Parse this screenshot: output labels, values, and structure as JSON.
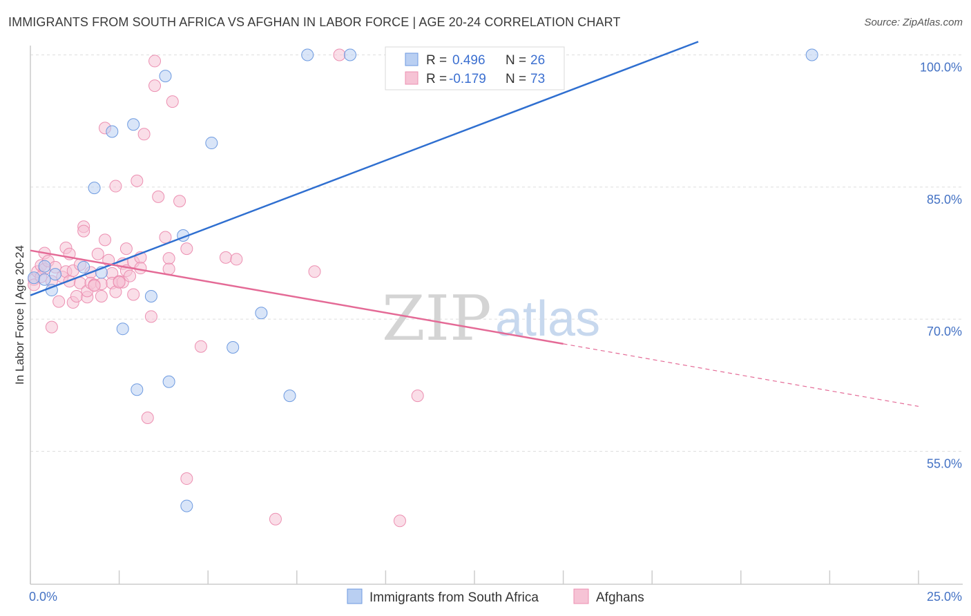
{
  "header": {
    "title": "IMMIGRANTS FROM SOUTH AFRICA VS AFGHAN IN LABOR FORCE | AGE 20-24 CORRELATION CHART",
    "source": "Source: ZipAtlas.com"
  },
  "watermark": {
    "zip": "ZIP",
    "atlas": "atlas"
  },
  "colors": {
    "blue": "#6d9ae0",
    "blue_fill": "#b9cff2",
    "blue_line": "#2f6fd0",
    "pink": "#ec8fb1",
    "pink_fill": "#f6c3d5",
    "pink_line": "#e46a96",
    "grid": "#dddddd",
    "axis_text": "#4472c4"
  },
  "legend": {
    "rows": [
      {
        "r_label": "R =",
        "r_value": "0.496",
        "n_label": "N =",
        "n_value": "26"
      },
      {
        "r_label": "R =",
        "r_value": "-0.179",
        "n_label": "N =",
        "n_value": "73"
      }
    ]
  },
  "bottom_legend": {
    "items": [
      "Immigrants from South Africa",
      "Afghans"
    ]
  },
  "chart_data": {
    "type": "scatter",
    "title": "IMMIGRANTS FROM SOUTH AFRICA VS AFGHAN IN LABOR FORCE | AGE 20-24 CORRELATION CHART",
    "xlabel": "",
    "ylabel": "In Labor Force | Age 20-24",
    "xlim": [
      0,
      25
    ],
    "ylim": [
      40,
      101.5
    ],
    "x_ticks": [
      "0.0%",
      "25.0%"
    ],
    "y_ticks": [
      {
        "value": 100,
        "label": "100.0%"
      },
      {
        "value": 85,
        "label": "85.0%"
      },
      {
        "value": 70,
        "label": "70.0%"
      },
      {
        "value": 55,
        "label": "55.0%"
      }
    ],
    "grid": true,
    "legend_position": "top-center",
    "series": [
      {
        "name": "Immigrants from South Africa",
        "R": 0.496,
        "N": 26,
        "trend": {
          "x": [
            0,
            18.8
          ],
          "y": [
            72.7,
            101.5
          ],
          "extended": false
        },
        "points": [
          [
            0.1,
            74.7
          ],
          [
            0.4,
            74.5
          ],
          [
            0.4,
            76.0
          ],
          [
            0.6,
            73.3
          ],
          [
            0.7,
            75.1
          ],
          [
            1.5,
            75.9
          ],
          [
            2.0,
            75.3
          ],
          [
            1.8,
            84.9
          ],
          [
            2.3,
            91.3
          ],
          [
            2.9,
            92.1
          ],
          [
            2.6,
            68.9
          ],
          [
            3.0,
            62.0
          ],
          [
            3.4,
            72.6
          ],
          [
            3.8,
            97.6
          ],
          [
            3.9,
            62.9
          ],
          [
            4.3,
            79.5
          ],
          [
            4.4,
            48.8
          ],
          [
            5.1,
            90.0
          ],
          [
            5.7,
            66.8
          ],
          [
            6.5,
            70.7
          ],
          [
            7.3,
            61.3
          ],
          [
            7.8,
            100.0
          ],
          [
            9.0,
            100.0
          ],
          [
            12.5,
            100.0
          ],
          [
            14.6,
            100.0
          ],
          [
            22.0,
            100.0
          ]
        ]
      },
      {
        "name": "Afghans",
        "R": -0.179,
        "N": 73,
        "trend": {
          "x": [
            0,
            15.0
          ],
          "y": [
            77.8,
            67.2
          ],
          "dashed_to": [
            25.0,
            60.1
          ]
        },
        "points": [
          [
            0.1,
            74.5
          ],
          [
            0.1,
            73.9
          ],
          [
            0.2,
            75.4
          ],
          [
            0.3,
            76.1
          ],
          [
            0.4,
            77.5
          ],
          [
            0.4,
            75.7
          ],
          [
            0.5,
            76.6
          ],
          [
            0.6,
            74.3
          ],
          [
            0.6,
            69.1
          ],
          [
            0.7,
            75.9
          ],
          [
            0.8,
            72.0
          ],
          [
            0.9,
            74.8
          ],
          [
            1.0,
            75.4
          ],
          [
            1.0,
            78.1
          ],
          [
            1.1,
            74.3
          ],
          [
            1.1,
            77.4
          ],
          [
            1.2,
            71.9
          ],
          [
            1.2,
            75.5
          ],
          [
            1.3,
            72.6
          ],
          [
            1.4,
            74.1
          ],
          [
            1.4,
            76.2
          ],
          [
            1.5,
            80.5
          ],
          [
            1.5,
            80.0
          ],
          [
            1.6,
            72.5
          ],
          [
            1.6,
            73.2
          ],
          [
            1.7,
            75.3
          ],
          [
            1.7,
            74.1
          ],
          [
            1.8,
            73.9
          ],
          [
            1.9,
            77.4
          ],
          [
            2.0,
            72.6
          ],
          [
            2.0,
            74.0
          ],
          [
            2.1,
            79.0
          ],
          [
            2.1,
            91.7
          ],
          [
            2.2,
            76.7
          ],
          [
            2.3,
            75.2
          ],
          [
            2.3,
            74.1
          ],
          [
            2.4,
            85.1
          ],
          [
            2.4,
            73.1
          ],
          [
            2.5,
            74.3
          ],
          [
            2.6,
            76.3
          ],
          [
            2.6,
            74.2
          ],
          [
            2.7,
            75.5
          ],
          [
            2.7,
            78.0
          ],
          [
            2.8,
            74.9
          ],
          [
            2.9,
            72.8
          ],
          [
            2.9,
            76.5
          ],
          [
            3.0,
            85.7
          ],
          [
            3.1,
            77.0
          ],
          [
            3.1,
            75.8
          ],
          [
            3.2,
            91.0
          ],
          [
            3.3,
            58.8
          ],
          [
            3.4,
            70.3
          ],
          [
            3.5,
            96.5
          ],
          [
            3.5,
            99.3
          ],
          [
            3.6,
            83.9
          ],
          [
            3.8,
            79.3
          ],
          [
            3.9,
            76.9
          ],
          [
            3.9,
            75.7
          ],
          [
            4.0,
            94.7
          ],
          [
            4.2,
            83.4
          ],
          [
            4.4,
            78.0
          ],
          [
            4.4,
            51.9
          ],
          [
            4.8,
            66.9
          ],
          [
            5.5,
            77.0
          ],
          [
            5.8,
            76.8
          ],
          [
            6.9,
            47.3
          ],
          [
            8.0,
            75.4
          ],
          [
            8.7,
            100.0
          ],
          [
            10.4,
            47.1
          ],
          [
            10.9,
            61.3
          ],
          [
            0.3,
            74.8
          ],
          [
            1.8,
            73.8
          ],
          [
            2.5,
            74.2
          ]
        ]
      }
    ]
  }
}
